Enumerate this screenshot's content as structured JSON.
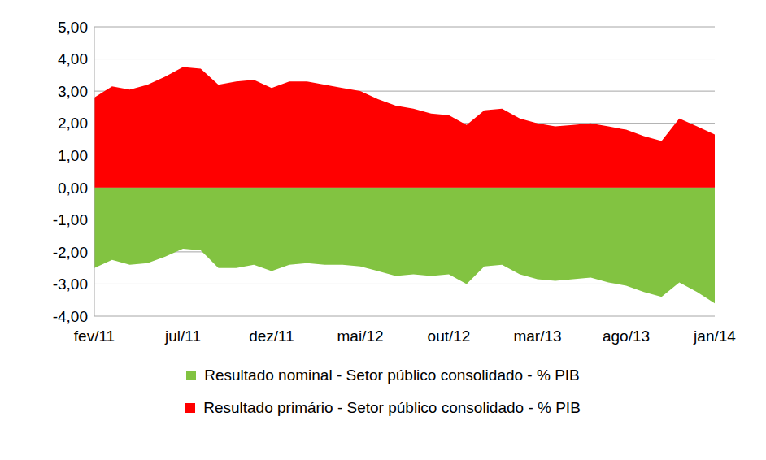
{
  "chart_data": {
    "type": "area",
    "categories": [
      "fev/11",
      null,
      null,
      null,
      null,
      "jul/11",
      null,
      null,
      null,
      null,
      "dez/11",
      null,
      null,
      null,
      null,
      "mai/12",
      null,
      null,
      null,
      null,
      "out/12",
      null,
      null,
      null,
      null,
      "mar/13",
      null,
      null,
      null,
      null,
      "ago/13",
      null,
      null,
      null,
      null,
      "jan/14"
    ],
    "series": [
      {
        "name": "Resultado nominal - Setor público consolidado - % PIB",
        "color": "#82c341",
        "values": [
          -2.5,
          -2.25,
          -2.4,
          -2.35,
          -2.15,
          -1.9,
          -1.95,
          -2.5,
          -2.5,
          -2.4,
          -2.6,
          -2.4,
          -2.35,
          -2.4,
          -2.4,
          -2.45,
          -2.6,
          -2.75,
          -2.7,
          -2.75,
          -2.7,
          -3.0,
          -2.45,
          -2.4,
          -2.7,
          -2.85,
          -2.9,
          -2.85,
          -2.8,
          -2.95,
          -3.05,
          -3.25,
          -3.4,
          -2.95,
          -3.25,
          -3.6
        ]
      },
      {
        "name": "Resultado primário - Setor público consolidado - % PIB",
        "color": "#ff0000",
        "values": [
          2.8,
          3.15,
          3.05,
          3.2,
          3.45,
          3.75,
          3.7,
          3.2,
          3.3,
          3.35,
          3.1,
          3.3,
          3.3,
          3.2,
          3.1,
          3.0,
          2.75,
          2.55,
          2.45,
          2.3,
          2.25,
          1.95,
          2.4,
          2.45,
          2.15,
          2.0,
          1.9,
          1.95,
          2.0,
          1.9,
          1.8,
          1.6,
          1.45,
          2.15,
          1.9,
          1.65
        ]
      }
    ],
    "ylim": [
      -4,
      5
    ],
    "yticks": [
      {
        "value": -4,
        "label": "-4,00"
      },
      {
        "value": -3,
        "label": "-3,00"
      },
      {
        "value": -2,
        "label": "-2,00"
      },
      {
        "value": -1,
        "label": "-1,00"
      },
      {
        "value": 0,
        "label": "0,00"
      },
      {
        "value": 1,
        "label": "1,00"
      },
      {
        "value": 2,
        "label": "2,00"
      },
      {
        "value": 3,
        "label": "3,00"
      },
      {
        "value": 4,
        "label": "4,00"
      },
      {
        "value": 5,
        "label": "5,00"
      }
    ],
    "grid": true,
    "legend": "bottom"
  }
}
